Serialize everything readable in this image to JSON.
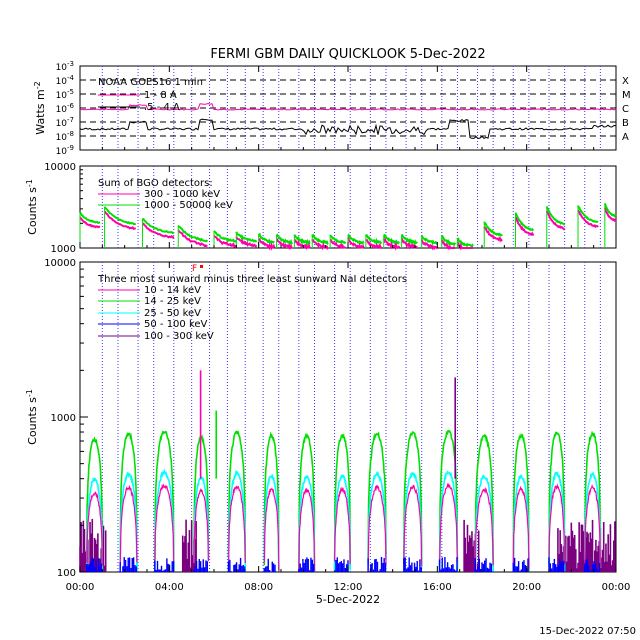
{
  "title": "FERMI GBM DAILY QUICKLOOK    5-Dec-2022",
  "footer_timestamp": "15-Dec-2022 07:50",
  "colors": {
    "magenta": "#ff00aa",
    "green": "#00e000",
    "cyan": "#00ffff",
    "blue": "#0000ff",
    "purple": "#7a0080",
    "black": "#000000",
    "orbit_line": "#3a3aff",
    "red": "#ff0000"
  },
  "chart_data": [
    {
      "id": "goes",
      "type": "line",
      "ylabel": "Watts m",
      "ylabel_sup": "-2",
      "scale": "log",
      "ylim_exp": [
        -9,
        -3
      ],
      "ytick_labels": [
        {
          "exp": -3,
          "text": "10",
          "sup": "-3"
        },
        {
          "exp": -4,
          "text": "10",
          "sup": "-4"
        },
        {
          "exp": -5,
          "text": "10",
          "sup": "-5"
        },
        {
          "exp": -6,
          "text": "10",
          "sup": "-6"
        },
        {
          "exp": -7,
          "text": "10",
          "sup": "-7"
        },
        {
          "exp": -8,
          "text": "10",
          "sup": "-8"
        },
        {
          "exp": -9,
          "text": "10",
          "sup": "-9"
        }
      ],
      "flare_classes": [
        {
          "exp": -4,
          "label": "X"
        },
        {
          "exp": -5,
          "label": "M"
        },
        {
          "exp": -6,
          "label": "C"
        },
        {
          "exp": -7,
          "label": "B"
        },
        {
          "exp": -8,
          "label": "A"
        }
      ],
      "legend_title": "NOAA GOES16 1 min",
      "series": [
        {
          "name": "1 - 8 A",
          "color": "magenta"
        },
        {
          "name": ".5 - 4 A",
          "color": "black"
        }
      ]
    },
    {
      "id": "bgo",
      "type": "line",
      "ylabel": "Counts s",
      "ylabel_sup": "-1",
      "scale": "log",
      "ylim": [
        1000,
        10000
      ],
      "ytick_labels": [
        "10000",
        "1000"
      ],
      "legend_title": "Sum of BGO detectors:",
      "series": [
        {
          "name": "300 - 1000 keV",
          "color": "magenta"
        },
        {
          "name": "1000 - 50000 keV",
          "color": "green"
        }
      ]
    },
    {
      "id": "nai",
      "type": "line",
      "ylabel": "Counts s",
      "ylabel_sup": "-1",
      "scale": "log",
      "ylim": [
        100,
        10000
      ],
      "ytick_labels": [
        "10000",
        "1000",
        "100"
      ],
      "legend_title": "Three most sunward minus three least sunward NaI detectors",
      "flag_label": "F",
      "series": [
        {
          "name": "10 - 14 keV",
          "color": "magenta"
        },
        {
          "name": "14 - 25 keV",
          "color": "green"
        },
        {
          "name": "25 - 50 keV",
          "color": "cyan"
        },
        {
          "name": "50 - 100 keV",
          "color": "blue"
        },
        {
          "name": "100 - 300 keV",
          "color": "purple"
        }
      ]
    }
  ],
  "xaxis": {
    "xlim_hours": [
      0,
      24
    ],
    "tick_labels": [
      "00:00",
      "04:00",
      "08:00",
      "12:00",
      "16:00",
      "20:00",
      "00:00"
    ],
    "xlabel": "5-Dec-2022"
  },
  "orbit_markers_hours": [
    1.0,
    1.7,
    2.6,
    3.3,
    4.2,
    5.0,
    5.8,
    6.6,
    7.4,
    8.2,
    8.9,
    9.8,
    10.5,
    11.4,
    12.1,
    13.0,
    13.7,
    14.6,
    15.3,
    16.2,
    16.9,
    17.8,
    18.5,
    19.4,
    20.1,
    21.0,
    21.7,
    22.6,
    23.3
  ],
  "daylight_arcs": [
    {
      "start": 0.3,
      "end": 1.0,
      "peak": 720
    },
    {
      "start": 1.8,
      "end": 2.55,
      "peak": 780
    },
    {
      "start": 3.35,
      "end": 4.2,
      "peak": 800
    },
    {
      "start": 5.1,
      "end": 5.75,
      "peak": 740
    },
    {
      "start": 6.65,
      "end": 7.4,
      "peak": 790
    },
    {
      "start": 8.25,
      "end": 8.9,
      "peak": 760
    },
    {
      "start": 9.8,
      "end": 10.5,
      "peak": 750
    },
    {
      "start": 11.4,
      "end": 12.1,
      "peak": 760
    },
    {
      "start": 12.9,
      "end": 13.7,
      "peak": 780
    },
    {
      "start": 14.5,
      "end": 15.3,
      "peak": 790
    },
    {
      "start": 16.1,
      "end": 16.9,
      "peak": 800
    },
    {
      "start": 17.7,
      "end": 18.5,
      "peak": 750
    },
    {
      "start": 19.4,
      "end": 20.1,
      "peak": 760
    },
    {
      "start": 21.0,
      "end": 21.7,
      "peak": 790
    },
    {
      "start": 22.6,
      "end": 23.3,
      "peak": 780
    }
  ],
  "bgo_segments": [
    {
      "start": 0.0,
      "end": 0.9,
      "top": 2700,
      "base": 2000
    },
    {
      "start": 1.1,
      "end": 2.5,
      "top": 3200,
      "base": 1900
    },
    {
      "start": 2.8,
      "end": 4.2,
      "top": 2300,
      "base": 1500
    },
    {
      "start": 4.4,
      "end": 5.7,
      "top": 1900,
      "base": 1200
    },
    {
      "start": 6.0,
      "end": 7.0,
      "top": 1600,
      "base": 1200
    },
    {
      "start": 7.0,
      "end": 7.9,
      "top": 1550,
      "base": 1200
    },
    {
      "start": 8.0,
      "end": 8.7,
      "top": 1500,
      "base": 1150
    },
    {
      "start": 8.8,
      "end": 9.5,
      "top": 1450,
      "base": 1150
    },
    {
      "start": 9.6,
      "end": 10.3,
      "top": 1450,
      "base": 1150
    },
    {
      "start": 10.4,
      "end": 11.1,
      "top": 1450,
      "base": 1150
    },
    {
      "start": 11.2,
      "end": 11.9,
      "top": 1450,
      "base": 1150
    },
    {
      "start": 12.0,
      "end": 12.7,
      "top": 1450,
      "base": 1150
    },
    {
      "start": 12.8,
      "end": 13.5,
      "top": 1450,
      "base": 1150
    },
    {
      "start": 13.6,
      "end": 14.3,
      "top": 1450,
      "base": 1150
    },
    {
      "start": 14.4,
      "end": 15.1,
      "top": 1450,
      "base": 1150
    },
    {
      "start": 15.3,
      "end": 16.0,
      "top": 1400,
      "base": 1150
    },
    {
      "start": 16.2,
      "end": 16.8,
      "top": 1400,
      "base": 1100
    },
    {
      "start": 16.9,
      "end": 17.6,
      "top": 1300,
      "base": 1050
    },
    {
      "start": 18.1,
      "end": 18.9,
      "top": 2100,
      "base": 1400
    },
    {
      "start": 19.5,
      "end": 20.3,
      "top": 2700,
      "base": 1600
    },
    {
      "start": 20.9,
      "end": 21.7,
      "top": 3200,
      "base": 1900
    },
    {
      "start": 22.3,
      "end": 23.2,
      "top": 3300,
      "base": 2000
    },
    {
      "start": 23.5,
      "end": 24.0,
      "top": 3500,
      "base": 2400
    }
  ],
  "nai_spikes": [
    {
      "hour": 5.4,
      "value": 2000,
      "series": "magenta"
    },
    {
      "hour": 6.1,
      "value": 1100,
      "series": "green"
    },
    {
      "hour": 16.8,
      "value": 1800,
      "series": "purple"
    }
  ]
}
